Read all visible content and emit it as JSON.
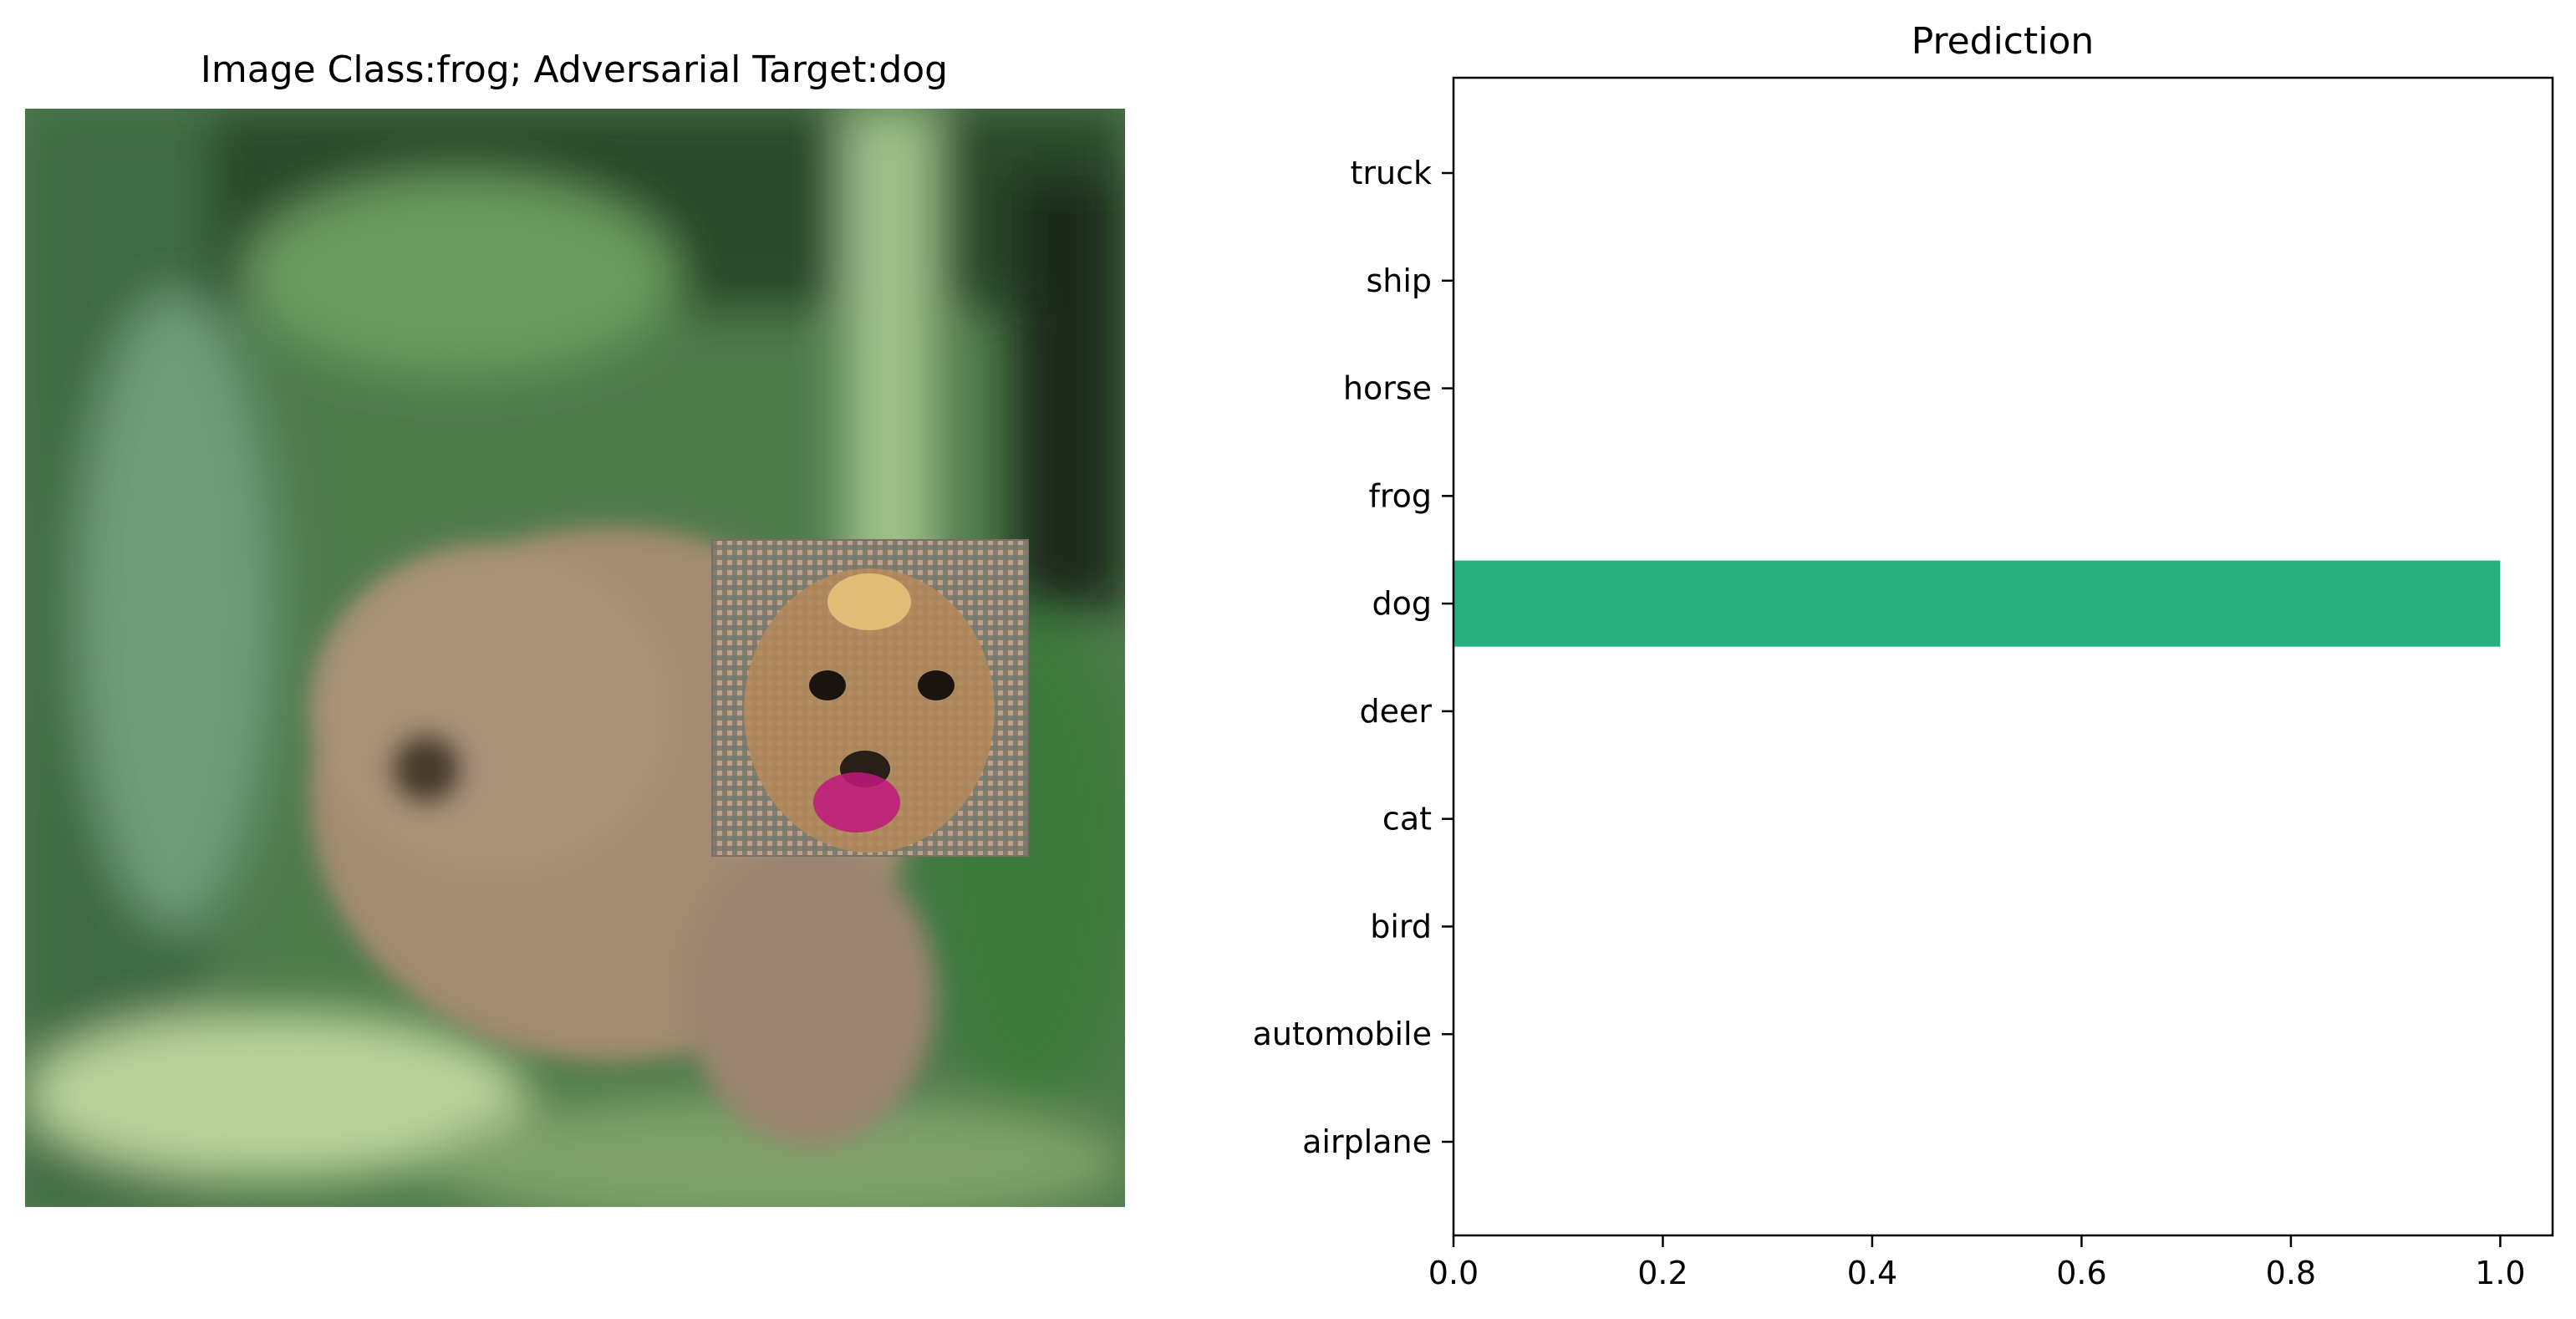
{
  "image_panel": {
    "title": "Image Class:frog; Adversarial Target:dog",
    "colors": {
      "background_green": "#4f7a4c",
      "dark_green": "#1f3320",
      "light_green": "#a7c98a",
      "frog_brown": "#a38b72",
      "patch_dog_fur": "#b48a5a",
      "patch_magenta": "#c2187c"
    }
  },
  "chart_data": {
    "type": "bar",
    "orientation": "horizontal",
    "title": "Prediction",
    "xlabel": "",
    "ylabel": "",
    "categories": [
      "airplane",
      "automobile",
      "bird",
      "cat",
      "deer",
      "dog",
      "frog",
      "horse",
      "ship",
      "truck"
    ],
    "values": [
      0.0,
      0.0,
      0.0,
      0.0,
      0.0,
      1.0,
      0.0,
      0.0,
      0.0,
      0.0
    ],
    "xlim": [
      0,
      1.05
    ],
    "xticks": [
      "0.0",
      "0.2",
      "0.4",
      "0.6",
      "0.8",
      "1.0"
    ],
    "xtick_values": [
      0.0,
      0.2,
      0.4,
      0.6,
      0.8,
      1.0
    ],
    "bar_color": "#29af7f",
    "grid": false
  }
}
